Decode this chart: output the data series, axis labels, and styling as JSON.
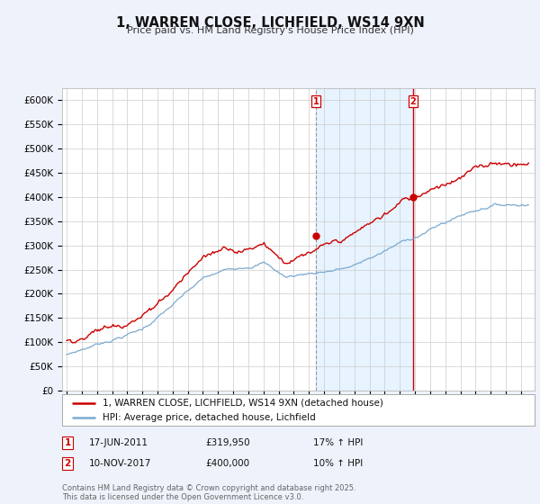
{
  "title": "1, WARREN CLOSE, LICHFIELD, WS14 9XN",
  "subtitle": "Price paid vs. HM Land Registry's House Price Index (HPI)",
  "ylim": [
    0,
    625000
  ],
  "yticks": [
    0,
    50000,
    100000,
    150000,
    200000,
    250000,
    300000,
    350000,
    400000,
    450000,
    500000,
    550000,
    600000
  ],
  "ytick_labels": [
    "£0",
    "£50K",
    "£100K",
    "£150K",
    "£200K",
    "£250K",
    "£300K",
    "£350K",
    "£400K",
    "£450K",
    "£500K",
    "£550K",
    "£600K"
  ],
  "hpi_color": "#7aaad0",
  "price_color": "#cc0000",
  "marker1_year": 2011.46,
  "marker2_year": 2017.87,
  "marker1_price": 319950,
  "marker2_price": 400000,
  "marker1_vline_color": "#999999",
  "marker1_vline_style": "--",
  "marker2_vline_color": "#cc0000",
  "marker2_vline_style": "-",
  "shade_color": "#ddeeff",
  "legend_label1": "1, WARREN CLOSE, LICHFIELD, WS14 9XN (detached house)",
  "legend_label2": "HPI: Average price, detached house, Lichfield",
  "footnote": "Contains HM Land Registry data © Crown copyright and database right 2025.\nThis data is licensed under the Open Government Licence v3.0.",
  "background_color": "#eef2fb",
  "plot_bg_color": "#ffffff",
  "grid_color": "#cccccc",
  "xmin": 1994.7,
  "xmax": 2025.9
}
